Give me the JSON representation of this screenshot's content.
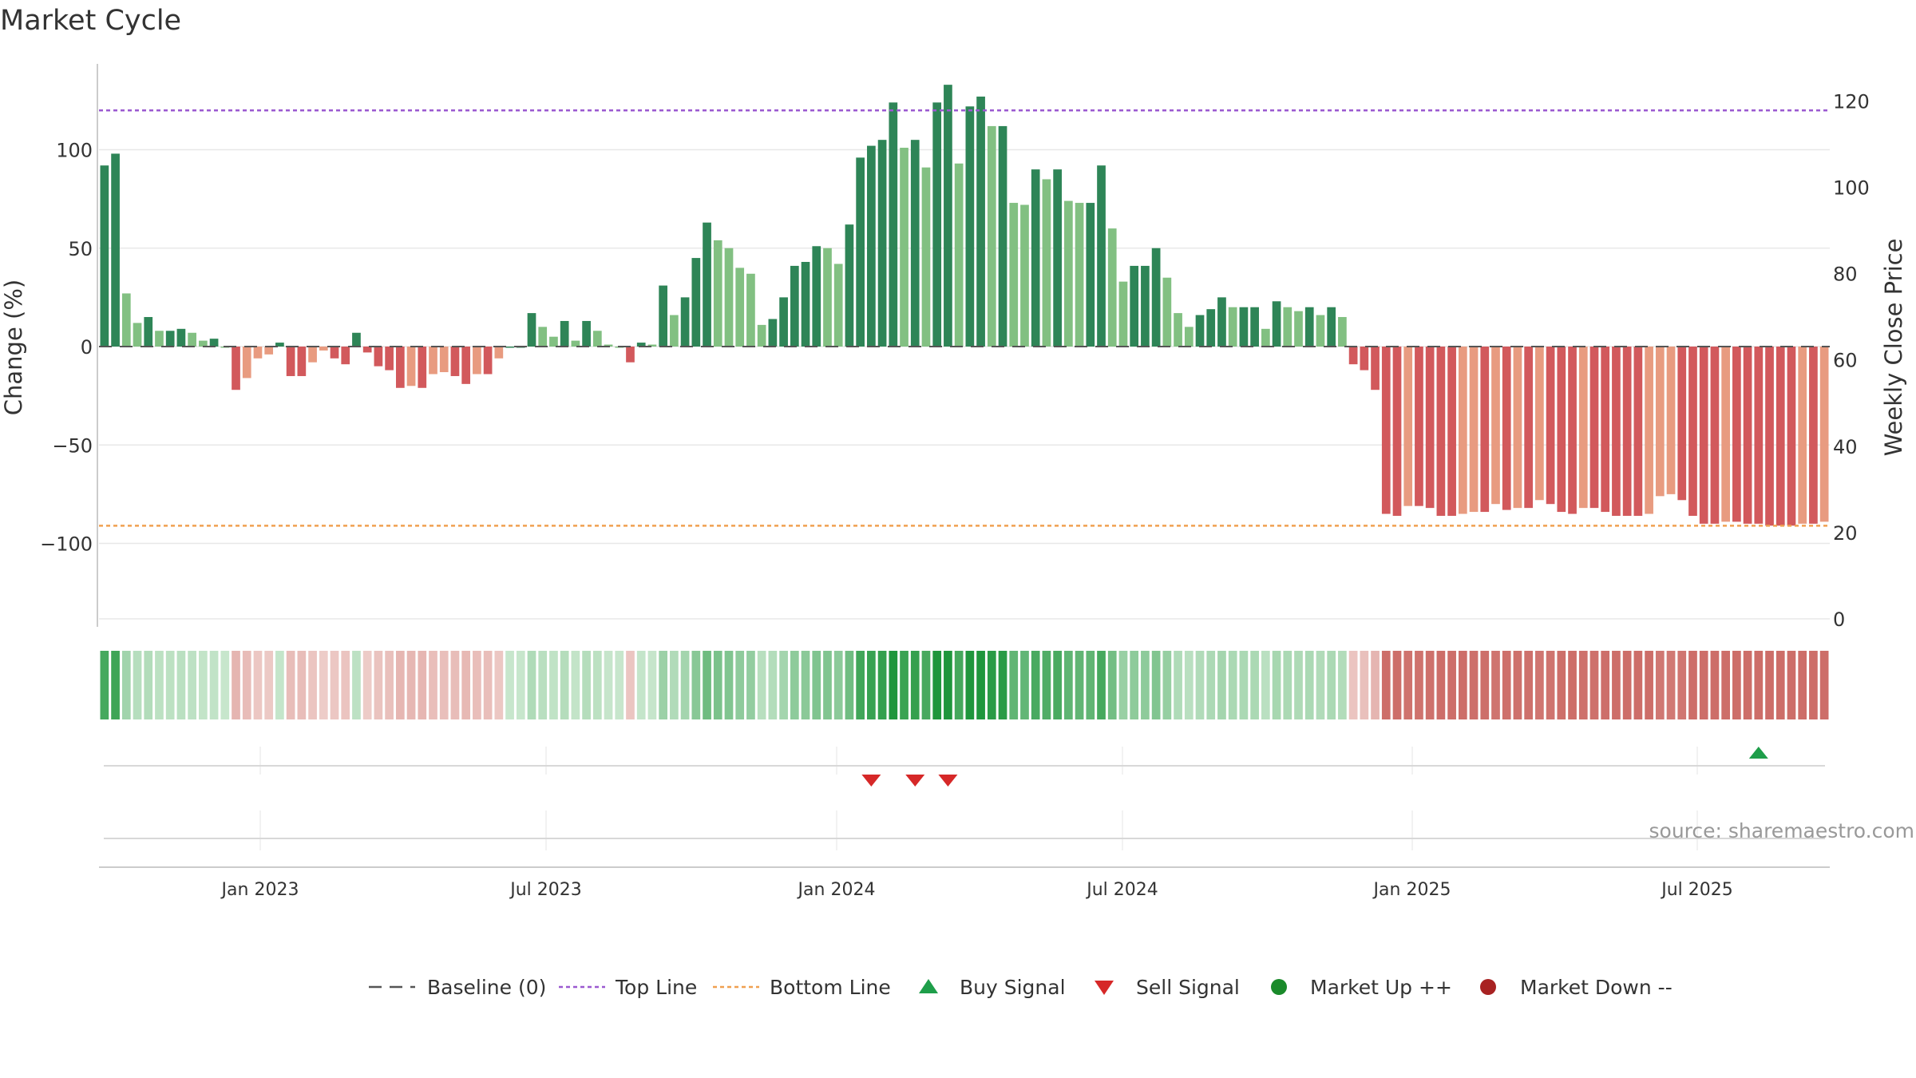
{
  "chart_data": {
    "type": "bar",
    "title": "Market Cycle",
    "ylabel_left": "Change (%)",
    "ylabel_right": "Weekly Close Price",
    "ylim_left": [
      -140,
      140
    ],
    "ylim_right": [
      0,
      130
    ],
    "yticks_left": [
      "100",
      "50",
      "0",
      "−50",
      "−100"
    ],
    "yticks_right": [
      "120",
      "100",
      "80",
      "60",
      "40",
      "20",
      "0"
    ],
    "top_line": 120,
    "bottom_line": -91,
    "x_labels": [
      "Jan 2023",
      "Jul 2023",
      "Jan 2024",
      "Jul 2024",
      "Jan 2025",
      "Jul 2025"
    ],
    "values": [
      92,
      98,
      27,
      12,
      15,
      8,
      8,
      9,
      7,
      3,
      4,
      0,
      -22,
      -16,
      -6,
      -4,
      2,
      -15,
      -15,
      -8,
      -2,
      -6,
      -9,
      7,
      -3,
      -10,
      -12,
      -21,
      -20,
      -21,
      -14,
      -13,
      -15,
      -19,
      -14,
      -14,
      -6,
      0,
      0,
      17,
      10,
      5,
      13,
      3,
      13,
      8,
      1,
      0,
      -8,
      2,
      1,
      31,
      16,
      25,
      45,
      63,
      54,
      50,
      40,
      37,
      11,
      14,
      25,
      41,
      43,
      51,
      50,
      42,
      62,
      96,
      102,
      105,
      124,
      101,
      105,
      91,
      124,
      133,
      93,
      122,
      127,
      112,
      112,
      73,
      72,
      90,
      85,
      90,
      74,
      73,
      73,
      92,
      60,
      33,
      41,
      41,
      50,
      35,
      17,
      10,
      16,
      19,
      25,
      20,
      20,
      20,
      9,
      23,
      20,
      18,
      20,
      16,
      20,
      15,
      -9,
      -12,
      -22,
      -85,
      -86,
      -81,
      -81,
      -82,
      -86,
      -86,
      -85,
      -84,
      -84,
      -80,
      -83,
      -82,
      -82,
      -78,
      -80,
      -84,
      -85,
      -82,
      -82,
      -84,
      -86,
      -86,
      -86,
      -85,
      -76,
      -75,
      -78,
      -86,
      -90,
      -90,
      -89,
      -89,
      -90,
      -90,
      -91,
      -91,
      -91,
      -90,
      -90,
      -89
    ],
    "signals": [
      {
        "type": "sell",
        "x_index": 70
      },
      {
        "type": "sell",
        "x_index": 74
      },
      {
        "type": "sell",
        "x_index": 77
      },
      {
        "type": "buy",
        "x_index": 151
      }
    ],
    "legend": [
      {
        "label": "Baseline (0)",
        "symbol": "dash"
      },
      {
        "label": "Top Line",
        "symbol": "dotted",
        "color": "#9b59d0"
      },
      {
        "label": "Bottom Line",
        "symbol": "dotted",
        "color": "#f0a050"
      },
      {
        "label": "Buy Signal",
        "symbol": "triangle-up",
        "color": "#1e9e4a"
      },
      {
        "label": "Sell Signal",
        "symbol": "triangle-down",
        "color": "#d62828"
      },
      {
        "label": "Market Up ++",
        "symbol": "circle",
        "color": "#1a8a2a"
      },
      {
        "label": "Market Down --",
        "symbol": "circle",
        "color": "#a82222"
      }
    ],
    "source": "source: sharemaestro.com",
    "colors": {
      "up_dark": "#2e8557",
      "up_light": "#82c082",
      "down_dark": "#d2595c",
      "down_light": "#e89b80",
      "top_line": "#9b59d0",
      "bottom_line": "#f0a050"
    }
  }
}
